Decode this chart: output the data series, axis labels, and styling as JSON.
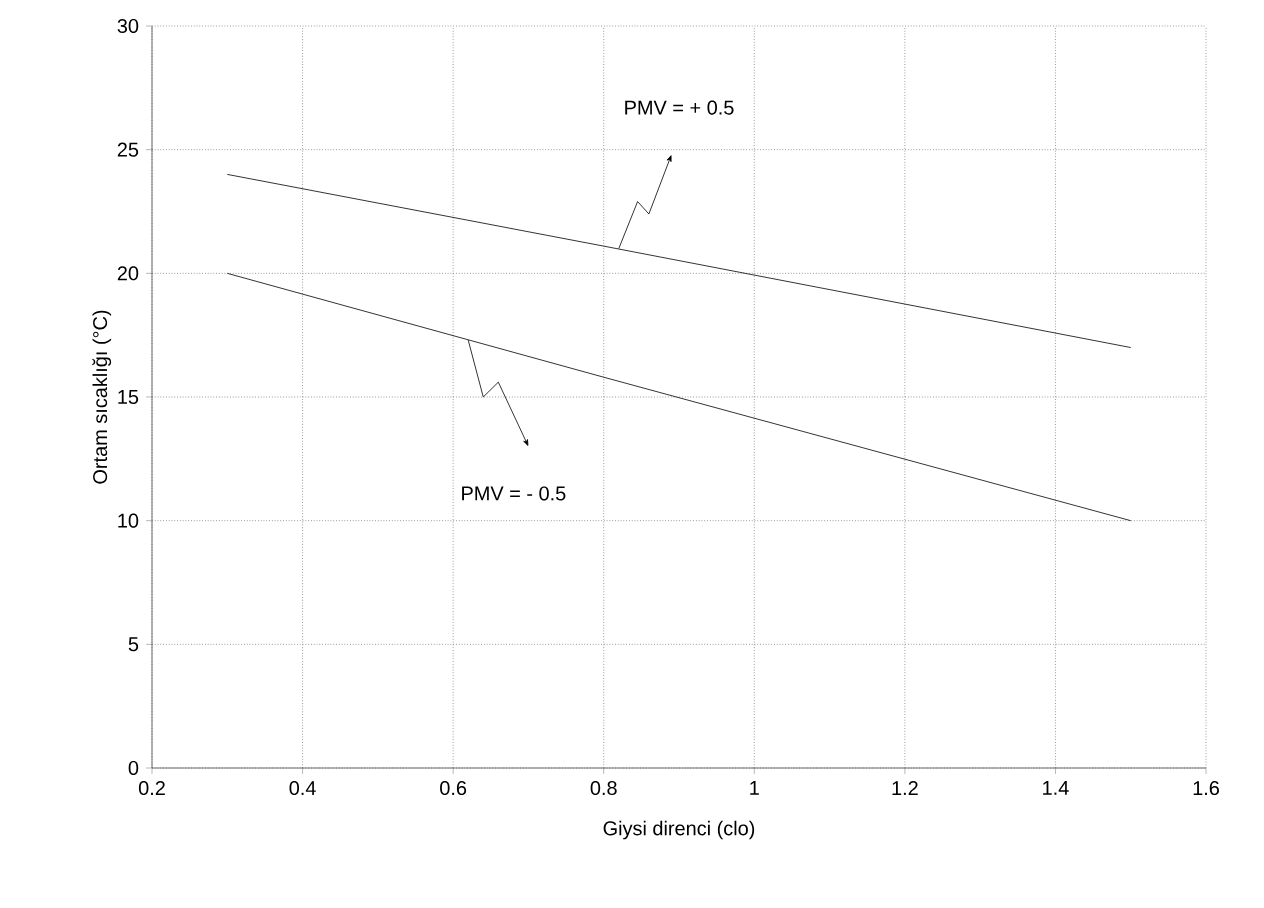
{
  "chart_data": {
    "type": "line",
    "xlabel": "Giysi direnci (clo)",
    "ylabel": "Ortam sıcaklığı (°C)",
    "series": [
      {
        "x": [
          0.3,
          0.8,
          1.5
        ],
        "values": [
          24,
          21.1,
          17
        ],
        "color": "#000000"
      },
      {
        "x": [
          0.3,
          0.8,
          1.5
        ],
        "values": [
          20,
          15.8,
          10
        ],
        "color": "#000000"
      }
    ],
    "xlim": [
      0.2,
      1.6
    ],
    "xticks": [
      0.2,
      0.4,
      0.6,
      0.8,
      1,
      1.2,
      1.4,
      1.6
    ],
    "ylim": [
      0,
      30
    ],
    "yticks": [
      0,
      5,
      10,
      15,
      20,
      25,
      30
    ],
    "grid": true,
    "marker": "none",
    "line_style": "solid",
    "annotations": [
      "PMV = + 0.5",
      "PMV = - 0.5"
    ]
  }
}
